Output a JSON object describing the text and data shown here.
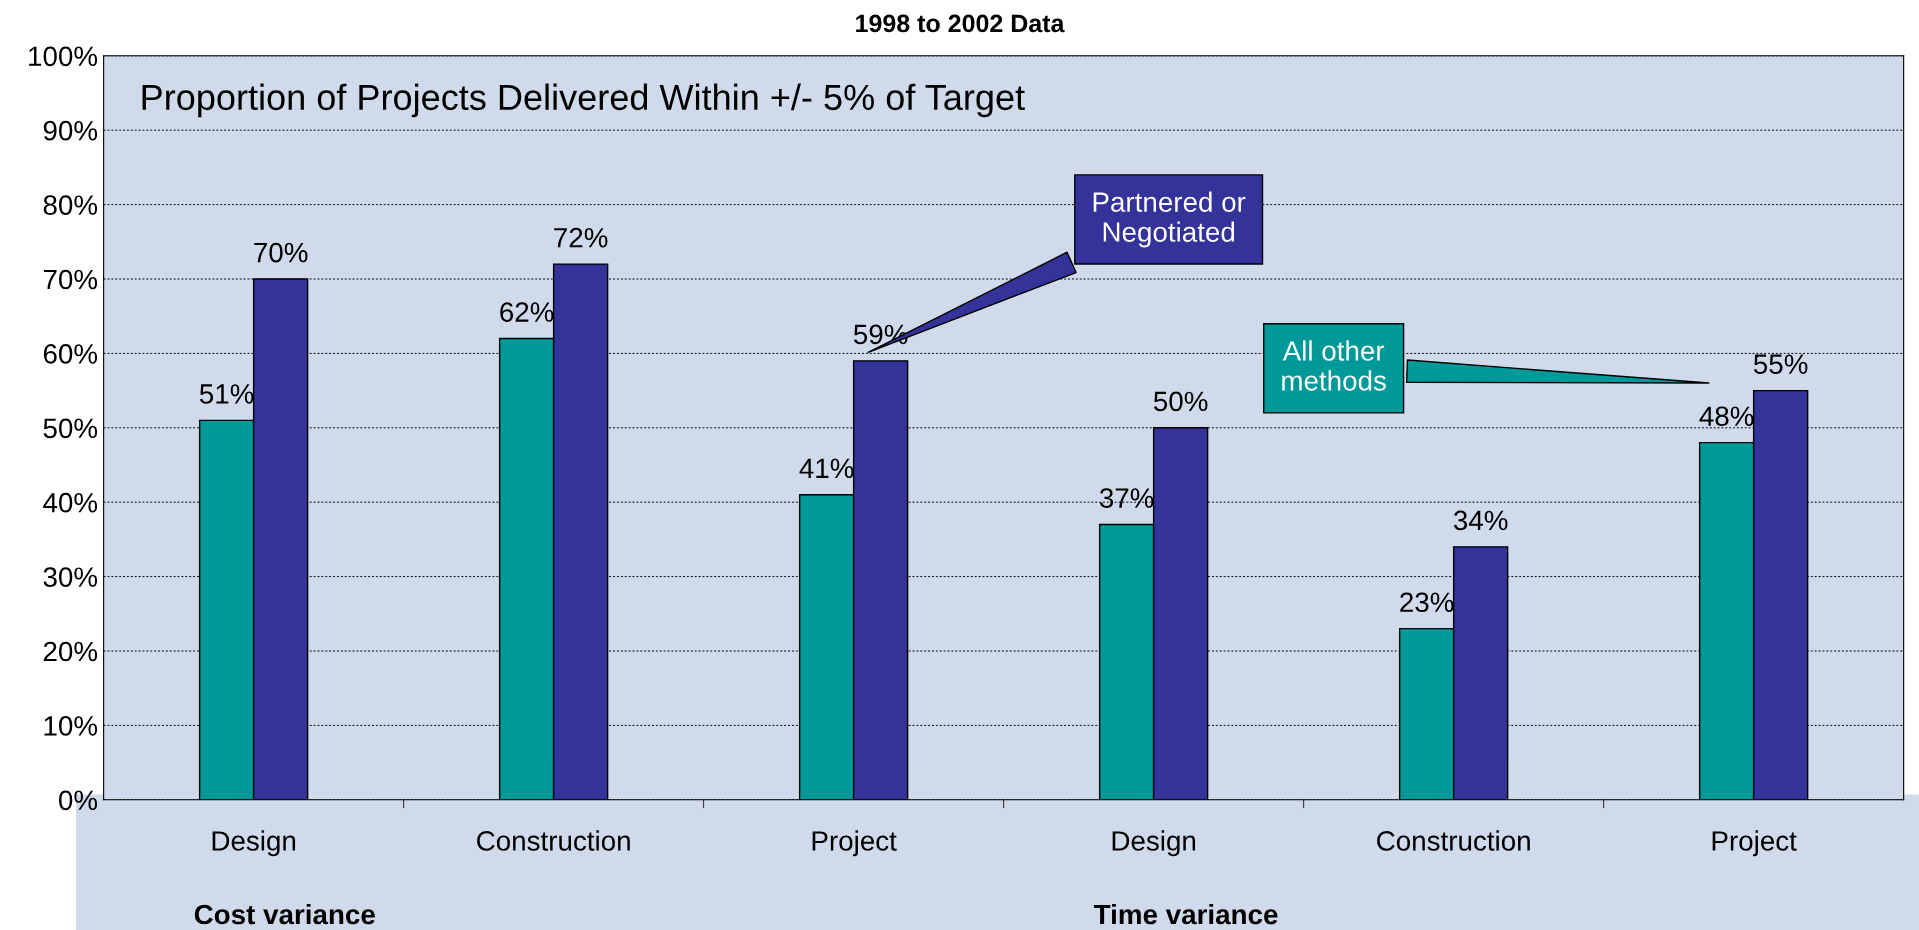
{
  "chart_data": {
    "type": "bar",
    "title": "Proportion of Projects Delivered Within +/- 5% of Target",
    "subtitle": "1998 to 2002 Data",
    "categories": [
      "Design",
      "Construction",
      "Project",
      "Design",
      "Construction",
      "Project"
    ],
    "series": [
      {
        "name": "All other methods",
        "color": "#009999",
        "values": [
          51,
          62,
          41,
          37,
          23,
          48
        ],
        "value_labels": [
          "51%",
          "62%",
          "41%",
          "37%",
          "23%",
          "48%"
        ]
      },
      {
        "name": "Partnered or Negotiated",
        "color": "#333399",
        "values": [
          70,
          72,
          59,
          50,
          34,
          55
        ],
        "value_labels": [
          "70%",
          "72%",
          "59%",
          "50%",
          "34%",
          "55%"
        ]
      }
    ],
    "annotations": [
      "Cost variance",
      "Time variance"
    ],
    "ylim": [
      0,
      100
    ],
    "yticks": [
      {
        "value": 0,
        "label": "0%"
      },
      {
        "value": 10,
        "label": "10%"
      },
      {
        "value": 20,
        "label": "20%"
      },
      {
        "value": 30,
        "label": "30%"
      },
      {
        "value": 40,
        "label": "40%"
      },
      {
        "value": 50,
        "label": "50%"
      },
      {
        "value": 60,
        "label": "60%"
      },
      {
        "value": 70,
        "label": "70%"
      },
      {
        "value": 80,
        "label": "80%"
      },
      {
        "value": 90,
        "label": "90%"
      },
      {
        "value": 100,
        "label": "100%"
      }
    ],
    "grid": "y",
    "legend": false
  }
}
